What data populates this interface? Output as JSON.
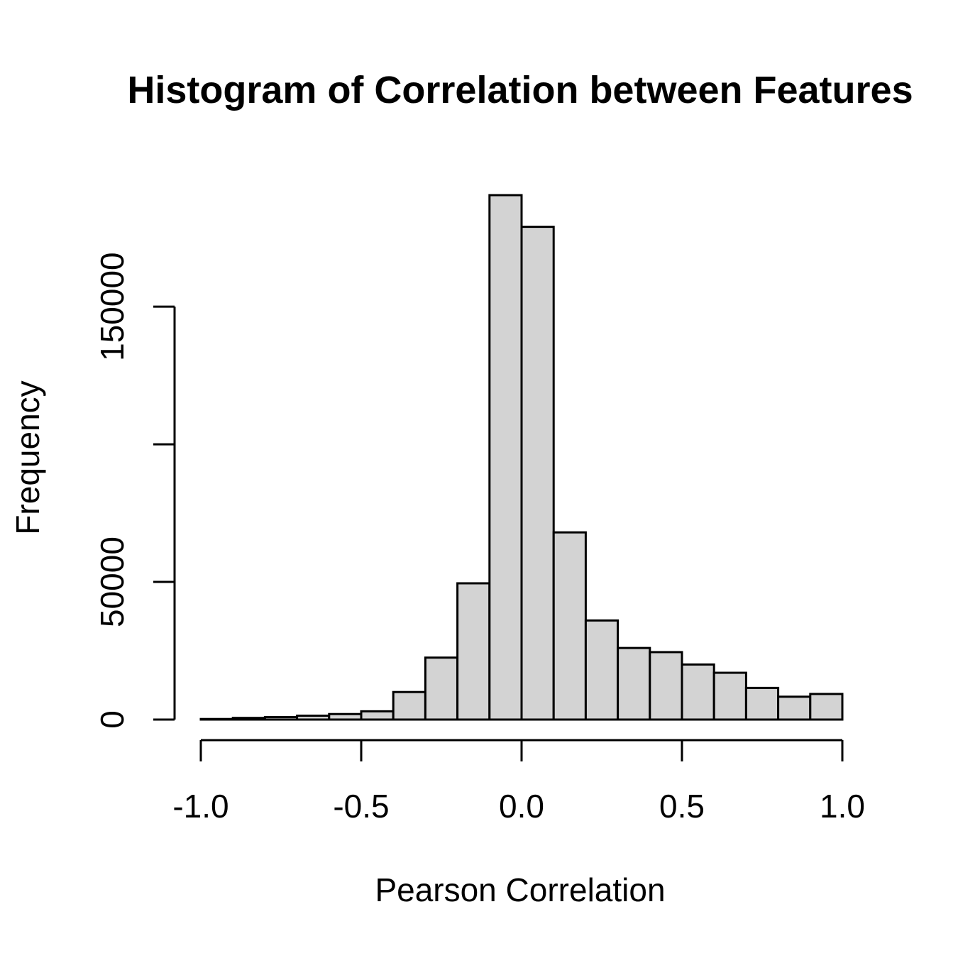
{
  "chart_data": {
    "type": "bar",
    "title": "Histogram of Correlation between Features",
    "xlabel": "Pearson Correlation",
    "ylabel": "Frequency",
    "bin_edges": [
      -1.0,
      -0.9,
      -0.8,
      -0.7,
      -0.6,
      -0.5,
      -0.4,
      -0.3,
      -0.2,
      -0.1,
      0.0,
      0.1,
      0.2,
      0.3,
      0.4,
      0.5,
      0.6,
      0.7,
      0.8,
      0.9,
      1.0
    ],
    "values": [
      200,
      600,
      900,
      1400,
      2000,
      3000,
      10000,
      22500,
      49500,
      190500,
      179000,
      68000,
      36000,
      26000,
      24500,
      20000,
      17000,
      11500,
      8300,
      9300
    ],
    "xlim": [
      -1.0,
      1.0
    ],
    "ylim": [
      0,
      190500
    ],
    "x_ticks": [
      -1.0,
      -0.5,
      0.0,
      0.5,
      1.0
    ],
    "x_tick_labels": [
      "-1.0",
      "-0.5",
      "0.0",
      "0.5",
      "1.0"
    ],
    "y_ticks": [
      0,
      50000,
      100000,
      150000
    ],
    "y_tick_labels": [
      "0",
      "50000",
      "",
      "150000"
    ],
    "bar_fill": "#d3d3d3",
    "bar_stroke": "#000000",
    "grid": false,
    "legend": "none"
  }
}
